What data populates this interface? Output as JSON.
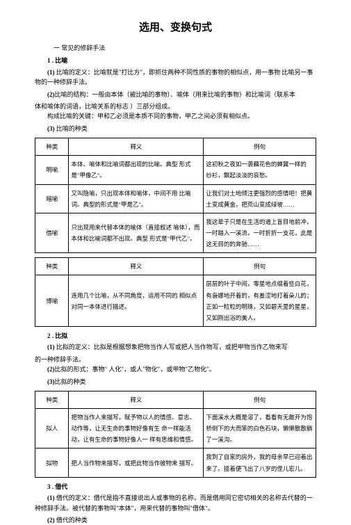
{
  "title": "选用、变换句式",
  "section1": {
    "heading": "一      常见的修辞手法",
    "item1": {
      "label": "1 . 比喻",
      "p1_label": "(1)",
      "p1_text": " 比喻的定义：比喻就是\"打比方\"，即抓住两种不同性质的事物的相似点，用一事物 比喻另一事物的一种修辞手法。",
      "p2_label": "(2)",
      "p2_mid": "比喻的结构：一般由本体（被比喻的事物）、喻体（用来比喻的事物）和比喻词（联系本",
      "p2_tail": "体和喻体的词语，比喻关系的标志            ）三部分组成。",
      "p3": "构成比喻的关键：甲和乙必须是本质不同的事物，甲乙之间必须有相似点。",
      "p4_label": "(3)",
      "p4_text": " 比喻的种类"
    },
    "table1": {
      "h1": "种类",
      "h2": "释义",
      "h3": "例句",
      "r1c1": "明喻",
      "r1c2": "本体、喻体和比喻词都出现的比喻。典型 形式是\"甲像乙\"。",
      "r1c3": "这初秋之夜如一袭藕花色的蝉翼一样的  纱衫，飘起淡淡的哀愁。",
      "r2c1": "暗喻",
      "r2c2": "又叫隐喻，只出现本体和喻体，中间不用 比喻词。典型的形式是\"甲是乙\"。",
      "r2c3": "让我们对土地倾注更强烈的感情吧！把黄土变成黄金，把荒山变成绿坡……",
      "r3c1": "借喻",
      "r3c2": "只出现用来代替本体的喻体（直接叙述 喻体），而本体和比喻词都不出现。典型 形式是\"甲代乙\"。",
      "r3c3": "我这辈子只是在生活的道上盲目地前冲，一时踏入一溪流，一时折折一支花，此是这无目的的奔驰……"
    },
    "table2": {
      "h1": "种类",
      "h2": "释义",
      "h3": "例句",
      "r1c1": "博喻",
      "r1c2": "连用几个比喻，从不同角度，运用不同的  相似点对同一本体进行描述。",
      "r1c3": "层层的叶子中间，零星地点缀着些白花，有袅娜地开着的，有羞涩地打着朵儿的；正如一粒粒的明珠，又如碧天里的星星，又如刚出浴的美人。"
    },
    "item2": {
      "label": "2 . 比拟",
      "p1_label": "(1)",
      "p1_text": " 比拟的定义：比拟是根据想象把物当作人写或把人当作物写，或把甲物当作乙物来写",
      "p1_tail": "的一种修辞手法。",
      "p2_label": "(2)",
      "p2_text": "比拟的形式：事物\" 人化\"，或人\"物化\"，或甲物\"乙物化\"。",
      "p3_label": "(3)",
      "p3_text": "比拟的种类"
    },
    "table3": {
      "h1": "种类",
      "h2": "释义",
      "h3": "例句",
      "r1c1": "拟人",
      "r1c2": "把物当作人来描写，赋予物以人的情感、意志、动作等，让无生命的事物好像有生 命一样能活动，让有生命的事物好像人一 样有思维和情感。",
      "r1c3": "下面溪水大概是溶了，看看有无敢开为饱  桥倒下的大而笨的白色石块，懒懒散散躺  了一溪沟。",
      "r2c1": "拟物",
      "r2c2": "把人当作物来描写，或把此物当作彼物来  描写。",
      "r2c3": "我到了自家的房外，我的母亲早已迎着出  来了。接着便飞出了八岁的侄儿宏儿。"
    },
    "item3": {
      "label": "3 . 借代",
      "p1_label": "(1)",
      "p1_text": " 借代的定义：借代是指不直接说出人或事物的名称，而是借用同它密切相关的名称去代替的一种修辞手法。被代替的事物叫\"本体\"，用来代替的事物叫\"借体\"。",
      "p2_label": "(2)",
      "p2_text": " 借代的种类"
    }
  }
}
